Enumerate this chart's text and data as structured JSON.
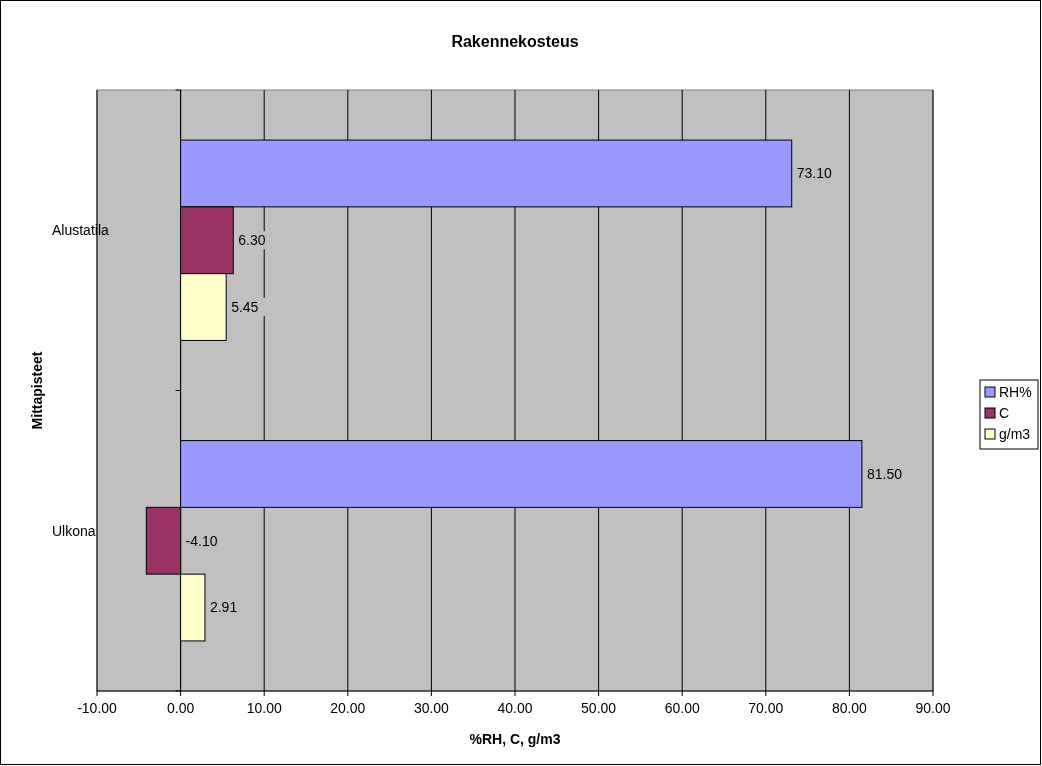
{
  "chart_data": {
    "type": "bar",
    "orientation": "horizontal",
    "title": "Rakennekosteus",
    "xlabel": "%RH, C, g/m3",
    "ylabel": "Mittapisteet",
    "categories": [
      "Alustatila",
      "Ulkona"
    ],
    "series": [
      {
        "name": "RH%",
        "color": "#9999ff",
        "values": [
          73.1,
          81.5
        ],
        "value_labels": [
          "73.10",
          "81.50"
        ]
      },
      {
        "name": "C",
        "color": "#993366",
        "values": [
          6.3,
          -4.1
        ],
        "value_labels": [
          "6.30",
          "-4.10"
        ]
      },
      {
        "name": "g/m3",
        "color": "#ffffcc",
        "values": [
          5.45,
          2.91
        ],
        "value_labels": [
          "5.45",
          "2.91"
        ]
      }
    ],
    "xlim": [
      -10,
      90
    ],
    "xticks": [
      {
        "value": -10,
        "label": "-10.00"
      },
      {
        "value": 0,
        "label": "0.00"
      },
      {
        "value": 10,
        "label": "10.00"
      },
      {
        "value": 20,
        "label": "20.00"
      },
      {
        "value": 30,
        "label": "30.00"
      },
      {
        "value": 40,
        "label": "40.00"
      },
      {
        "value": 50,
        "label": "50.00"
      },
      {
        "value": 60,
        "label": "60.00"
      },
      {
        "value": 70,
        "label": "70.00"
      },
      {
        "value": 80,
        "label": "80.00"
      },
      {
        "value": 90,
        "label": "90.00"
      }
    ],
    "grid": "x",
    "legend": "right"
  }
}
